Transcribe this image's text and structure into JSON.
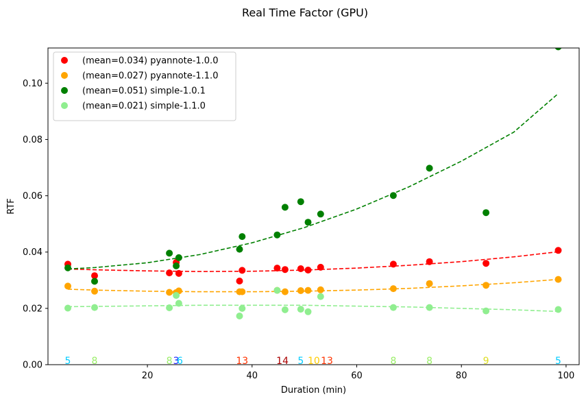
{
  "chart_data": {
    "type": "scatter",
    "title": "Real Time Factor (GPU)",
    "xlabel": "Duration (min)",
    "ylabel": "RTF",
    "xlim": [
      1.0,
      102.5
    ],
    "ylim": [
      0.0,
      0.1125
    ],
    "xticks": [
      20,
      40,
      60,
      80,
      100
    ],
    "yticks": [
      0.0,
      0.02,
      0.04,
      0.06,
      0.08,
      0.1
    ],
    "ytick_labels": [
      "0.00",
      "0.02",
      "0.04",
      "0.06",
      "0.08",
      "0.10"
    ],
    "grid": false,
    "legend_position": "top-left",
    "series": [
      {
        "name": "(mean=0.034) pyannote-1.0.0",
        "color": "#ff0000",
        "x": [
          4.8,
          9.9,
          24.2,
          25.5,
          26.0,
          37.6,
          38.1,
          44.8,
          46.3,
          49.3,
          50.7,
          53.1,
          67.0,
          73.9,
          84.7,
          98.5
        ],
        "y": [
          0.0357,
          0.0316,
          0.0326,
          0.0363,
          0.0324,
          0.0297,
          0.0335,
          0.0343,
          0.0338,
          0.0341,
          0.0336,
          0.0346,
          0.0357,
          0.0366,
          0.036,
          0.0406
        ],
        "trend_x": [
          4.8,
          10,
          20,
          30,
          40,
          50,
          60,
          70,
          80,
          90,
          98.5
        ],
        "trend_y": [
          0.034,
          0.0337,
          0.0333,
          0.0331,
          0.0332,
          0.0336,
          0.0343,
          0.0353,
          0.0366,
          0.0383,
          0.0401
        ]
      },
      {
        "name": "(mean=0.027) pyannote-1.1.0",
        "color": "#ffa500",
        "x": [
          4.8,
          9.9,
          24.2,
          25.5,
          26.0,
          37.6,
          38.1,
          44.8,
          46.3,
          49.3,
          50.7,
          53.1,
          67.0,
          73.9,
          84.7,
          98.5
        ],
        "y": [
          0.0279,
          0.0261,
          0.0257,
          0.0256,
          0.0262,
          0.0259,
          0.0259,
          0.0264,
          0.0259,
          0.0263,
          0.0264,
          0.0266,
          0.027,
          0.0288,
          0.0282,
          0.0303
        ],
        "trend_x": [
          4.8,
          10,
          20,
          30,
          40,
          50,
          60,
          70,
          80,
          90,
          98.5
        ],
        "trend_y": [
          0.0268,
          0.0265,
          0.0261,
          0.0259,
          0.0259,
          0.0261,
          0.0265,
          0.0271,
          0.028,
          0.0291,
          0.0303
        ]
      },
      {
        "name": "(mean=0.051) simple-1.0.1",
        "color": "#008000",
        "x": [
          4.8,
          9.9,
          24.2,
          25.5,
          26.0,
          37.6,
          38.1,
          44.8,
          46.3,
          49.3,
          50.7,
          53.1,
          67.0,
          73.9,
          84.7,
          98.5
        ],
        "y": [
          0.0344,
          0.0296,
          0.0396,
          0.0351,
          0.038,
          0.041,
          0.0455,
          0.0461,
          0.0559,
          0.0579,
          0.0506,
          0.0535,
          0.0601,
          0.0698,
          0.054,
          0.1129
        ],
        "trend_x": [
          4.8,
          10,
          20,
          30,
          40,
          50,
          60,
          70,
          80,
          90,
          98.5
        ],
        "trend_y": [
          0.034,
          0.0345,
          0.0362,
          0.0391,
          0.0433,
          0.0487,
          0.0553,
          0.0632,
          0.0723,
          0.0826,
          0.0963
        ]
      },
      {
        "name": "(mean=0.021) simple-1.1.0",
        "color": "#90ee90",
        "x": [
          4.8,
          9.9,
          24.2,
          25.5,
          26.0,
          37.6,
          38.1,
          44.8,
          46.3,
          49.3,
          50.7,
          53.1,
          67.0,
          73.9,
          84.7,
          98.5
        ],
        "y": [
          0.0201,
          0.0203,
          0.0202,
          0.0246,
          0.0218,
          0.0173,
          0.02,
          0.0264,
          0.0195,
          0.0197,
          0.0188,
          0.0242,
          0.0203,
          0.0203,
          0.0191,
          0.0196
        ],
        "trend_x": [
          4.8,
          10,
          20,
          30,
          40,
          50,
          60,
          70,
          80,
          90,
          98.5
        ],
        "trend_y": [
          0.0206,
          0.0207,
          0.0209,
          0.0211,
          0.0211,
          0.0211,
          0.0208,
          0.0205,
          0.02,
          0.0195,
          0.0189
        ]
      }
    ],
    "annotations": [
      {
        "text": "5",
        "x": 4.8,
        "color": "#00ccff"
      },
      {
        "text": "8",
        "x": 9.9,
        "color": "#99ee66"
      },
      {
        "text": "8",
        "x": 24.2,
        "color": "#99ee66"
      },
      {
        "text": "3",
        "x": 25.5,
        "color": "#1a1aff"
      },
      {
        "text": "6",
        "x": 26.2,
        "color": "#00ccff"
      },
      {
        "text": "13",
        "x": 38.1,
        "color": "#ff3300"
      },
      {
        "text": "14",
        "x": 45.8,
        "color": "#aa0000"
      },
      {
        "text": "5",
        "x": 49.3,
        "color": "#00ccff"
      },
      {
        "text": "10",
        "x": 51.8,
        "color": "#ffcc00"
      },
      {
        "text": "13",
        "x": 54.3,
        "color": "#ff3300"
      },
      {
        "text": "8",
        "x": 67.0,
        "color": "#99ee66"
      },
      {
        "text": "8",
        "x": 73.9,
        "color": "#99ee66"
      },
      {
        "text": "9",
        "x": 84.7,
        "color": "#dddd22"
      },
      {
        "text": "5",
        "x": 98.5,
        "color": "#00ccff"
      }
    ]
  }
}
